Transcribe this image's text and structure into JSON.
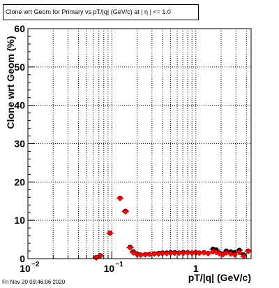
{
  "title": "Clone wrt Geom for Primary vs pT/|q| (GeV/c) at |  η | <= 1.0",
  "footer": "Fri Nov 20 09:46:06 2020",
  "chart_data": {
    "type": "scatter",
    "title": "Clone wrt Geom for Primary vs pT/|q| (GeV/c) at |  η | <= 1.0",
    "xlabel": "pT/|q| (GeV/c)",
    "ylabel": "Clone wrt Geom (%)",
    "xscale": "log",
    "xlim": [
      0.01,
      4.55
    ],
    "ylim": [
      0,
      60
    ],
    "grid": true,
    "y_ticks": [
      0,
      10,
      20,
      30,
      40,
      50,
      60
    ],
    "y_tick_labels": [
      "0",
      "10",
      "20",
      "30",
      "40",
      "50",
      "60"
    ],
    "x_ticks_major": [
      0.01,
      0.1,
      1
    ],
    "x_tick_labels": [
      "10",
      "10",
      "1"
    ],
    "x_tick_exponents": [
      "−2",
      "−1",
      ""
    ],
    "series": [
      {
        "color": "#000000",
        "marker": "circle",
        "x": [
          0.065,
          0.073,
          0.095,
          0.125,
          0.145,
          0.165,
          0.18,
          0.2,
          0.22,
          0.25,
          0.28,
          0.32,
          0.36,
          0.4,
          0.45,
          0.5,
          0.56,
          0.63,
          0.71,
          0.8,
          0.9,
          1.0,
          1.1,
          1.25,
          1.4,
          1.6,
          1.75,
          1.9,
          2.1,
          2.3,
          2.6,
          2.9,
          3.3,
          3.7,
          4.2
        ],
        "y": [
          0.3,
          0.8,
          6.7,
          15.8,
          12.4,
          3.0,
          1.8,
          1.2,
          1.0,
          1.1,
          1.2,
          1.3,
          1.4,
          1.5,
          1.5,
          1.6,
          1.6,
          1.5,
          1.6,
          1.6,
          1.5,
          1.6,
          1.5,
          1.6,
          1.4,
          2.5,
          2.3,
          1.5,
          1.2,
          2.0,
          1.8,
          1.6,
          2.2,
          1.0,
          2.0
        ]
      },
      {
        "color": "#ff0000",
        "marker": "diamond",
        "x": [
          0.065,
          0.073,
          0.095,
          0.125,
          0.145,
          0.165,
          0.18,
          0.2,
          0.22,
          0.25,
          0.28,
          0.32,
          0.36,
          0.4,
          0.45,
          0.5,
          0.56,
          0.63,
          0.71,
          0.8,
          0.9,
          1.0,
          1.1,
          1.25,
          1.4,
          1.6,
          1.75,
          1.9,
          2.1,
          2.3,
          2.6,
          2.9,
          3.3,
          3.7,
          4.2
        ],
        "y": [
          0.2,
          0.7,
          6.6,
          15.7,
          12.2,
          2.8,
          1.5,
          1.0,
          0.9,
          1.0,
          1.1,
          1.2,
          1.2,
          1.3,
          1.3,
          1.4,
          1.4,
          1.4,
          1.4,
          1.5,
          1.4,
          1.5,
          1.4,
          1.5,
          1.3,
          1.8,
          1.6,
          1.3,
          1.0,
          1.5,
          1.2,
          1.0,
          1.6,
          0.6,
          1.9
        ]
      }
    ]
  }
}
